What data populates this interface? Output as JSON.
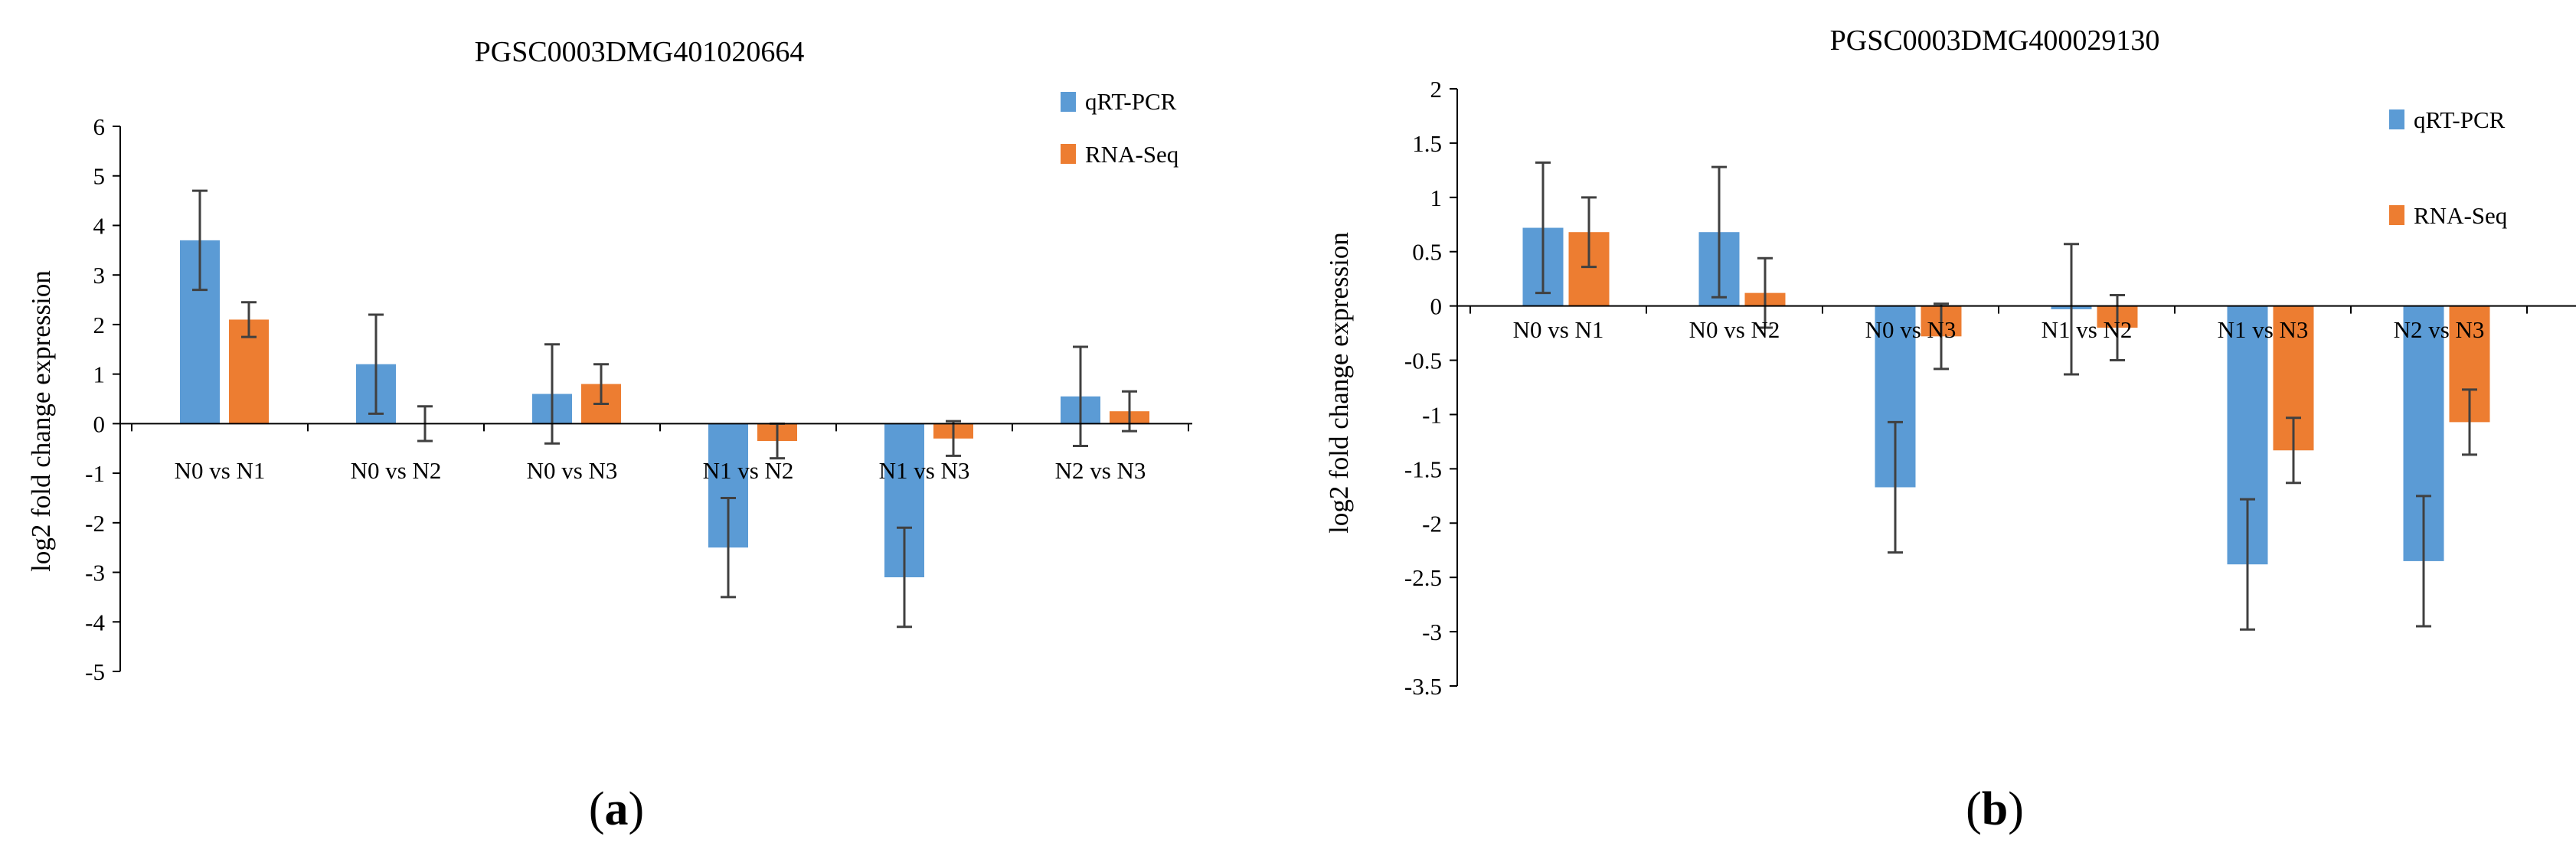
{
  "panels": [
    {
      "label_open": "(",
      "label_letter": "a",
      "label_close": ")"
    },
    {
      "label_open": "(",
      "label_letter": "b",
      "label_close": ")"
    }
  ],
  "chart_data": [
    {
      "type": "bar",
      "title": "PGSC0003DMG401020664",
      "xlabel": "",
      "ylabel": "log2 fold change expression",
      "ylim": [
        -5,
        6
      ],
      "yticks": [
        6,
        5,
        4,
        3,
        2,
        1,
        0,
        -1,
        -2,
        -3,
        -4,
        -5
      ],
      "ytick_labels": [
        "6",
        "5",
        "4",
        "3",
        "2",
        "1",
        "0",
        "-1",
        "-2",
        "-3",
        "-4",
        "-5"
      ],
      "categories": [
        "N0 vs N1",
        "N0 vs N2",
        "N0 vs N3",
        "N1 vs N2",
        "N1 vs N3",
        "N2 vs N3"
      ],
      "legend_position": "top-right",
      "series": [
        {
          "name": "qRT-PCR",
          "color": "#5B9BD5",
          "values": [
            3.7,
            1.2,
            0.6,
            -2.5,
            -3.1,
            0.55
          ],
          "errors": [
            1.0,
            1.0,
            1.0,
            1.0,
            1.0,
            1.0
          ]
        },
        {
          "name": "RNA-Seq",
          "color": "#ED7D31",
          "values": [
            2.1,
            0.0,
            0.8,
            -0.35,
            -0.3,
            0.25
          ],
          "errors": [
            0.35,
            0.35,
            0.4,
            0.35,
            0.35,
            0.4
          ]
        }
      ]
    },
    {
      "type": "bar",
      "title": "PGSC0003DMG400029130",
      "xlabel": "",
      "ylabel": "log2 fold change expression",
      "ylim": [
        -3.5,
        2
      ],
      "yticks": [
        2,
        1.5,
        1,
        0.5,
        0,
        -0.5,
        -1,
        -1.5,
        -2,
        -2.5,
        -3,
        -3.5
      ],
      "ytick_labels": [
        "2",
        "1.5",
        "1",
        "0.5",
        "0",
        "-0.5",
        "-1",
        "-1.5",
        "-2",
        "-2.5",
        "-3",
        "-3.5"
      ],
      "categories": [
        "N0 vs N1",
        "N0 vs N2",
        "N0 vs N3",
        "N1 vs N2",
        "N1 vs N3",
        "N2 vs N3"
      ],
      "legend_position": "top-right",
      "series": [
        {
          "name": "qRT-PCR",
          "color": "#5B9BD5",
          "values": [
            0.72,
            0.68,
            -1.67,
            -0.03,
            -2.38,
            -2.35
          ],
          "errors": [
            0.6,
            0.6,
            0.6,
            0.6,
            0.6,
            0.6
          ]
        },
        {
          "name": "RNA-Seq",
          "color": "#ED7D31",
          "values": [
            0.68,
            0.12,
            -0.28,
            -0.2,
            -1.33,
            -1.07
          ],
          "errors": [
            0.32,
            0.32,
            0.3,
            0.3,
            0.3,
            0.3
          ]
        }
      ]
    }
  ]
}
